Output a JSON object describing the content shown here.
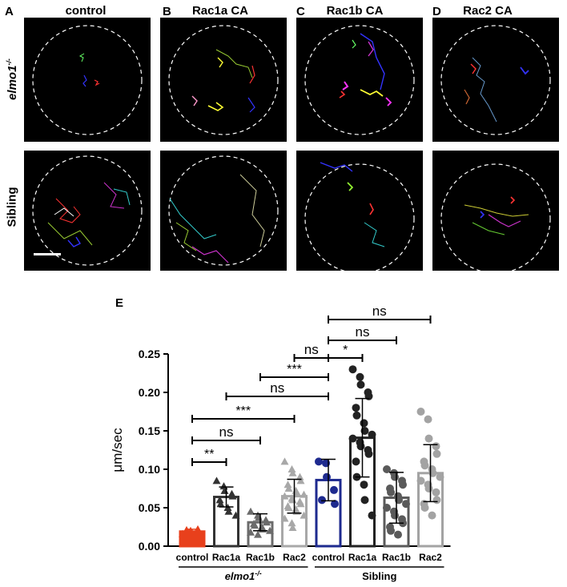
{
  "panels": [
    {
      "letter": "A",
      "title": "control"
    },
    {
      "letter": "B",
      "title": "Rac1a CA"
    },
    {
      "letter": "C",
      "title": "Rac1b CA"
    },
    {
      "letter": "D",
      "title": "Rac2 CA"
    }
  ],
  "rows": {
    "top": "elmo1",
    "top_sup": "-/-",
    "bottom": "Sibling"
  },
  "panel_e_letter": "E",
  "chart_data": {
    "type": "bar",
    "title": "",
    "ylabel": "μm/sec",
    "ylim": [
      0,
      0.25
    ],
    "yticks": [
      "0.00",
      "0.05",
      "0.10",
      "0.15",
      "0.20",
      "0.25"
    ],
    "categories": [
      "control",
      "Rac1a",
      "Rac1b",
      "Rac2",
      "control",
      "Rac1a",
      "Rac1b",
      "Rac2"
    ],
    "groups": [
      {
        "label": "elmo1",
        "sup": "-/-",
        "italic": true
      },
      {
        "label": "Sibling",
        "sup": "",
        "italic": false
      }
    ],
    "values": [
      0.019,
      0.064,
      0.031,
      0.065,
      0.086,
      0.141,
      0.063,
      0.095
    ],
    "sd": [
      0.003,
      0.013,
      0.011,
      0.022,
      0.027,
      0.051,
      0.033,
      0.037
    ],
    "colors": [
      "#e8401c",
      "#333333",
      "#6b6b6b",
      "#a8a8a8",
      "#1e2a8f",
      "#222222",
      "#5a5a5a",
      "#a3a3a3"
    ],
    "markers": [
      "triangle",
      "triangle",
      "triangle",
      "triangle",
      "circle",
      "circle",
      "circle",
      "circle"
    ],
    "points": [
      [
        0.016,
        0.018,
        0.02,
        0.022,
        0.019,
        0.017,
        0.021
      ],
      [
        0.085,
        0.078,
        0.072,
        0.068,
        0.065,
        0.06,
        0.055,
        0.05,
        0.045,
        0.04
      ],
      [
        0.045,
        0.04,
        0.037,
        0.034,
        0.031,
        0.029,
        0.027,
        0.025,
        0.022,
        0.02,
        0.018,
        0.015
      ],
      [
        0.11,
        0.1,
        0.095,
        0.09,
        0.085,
        0.08,
        0.075,
        0.072,
        0.07,
        0.067,
        0.065,
        0.062,
        0.06,
        0.058,
        0.055,
        0.052,
        0.05,
        0.048,
        0.045,
        0.04,
        0.036,
        0.03,
        0.024
      ],
      [
        0.11,
        0.108,
        0.09,
        0.073,
        0.055,
        0.06
      ],
      [
        0.23,
        0.22,
        0.21,
        0.2,
        0.195,
        0.18,
        0.17,
        0.16,
        0.15,
        0.145,
        0.14,
        0.135,
        0.13,
        0.125,
        0.12,
        0.11,
        0.09,
        0.08,
        0.06,
        0.04
      ],
      [
        0.1,
        0.095,
        0.09,
        0.085,
        0.08,
        0.075,
        0.07,
        0.065,
        0.06,
        0.055,
        0.05,
        0.045,
        0.04,
        0.035,
        0.03,
        0.025,
        0.02,
        0.015
      ],
      [
        0.175,
        0.165,
        0.14,
        0.13,
        0.12,
        0.11,
        0.105,
        0.1,
        0.095,
        0.09,
        0.085,
        0.08,
        0.075,
        0.07,
        0.06,
        0.055,
        0.05,
        0.04
      ]
    ],
    "comparisons": [
      {
        "from": 0,
        "to": 1,
        "label": "**"
      },
      {
        "from": 0,
        "to": 2,
        "label": "ns"
      },
      {
        "from": 0,
        "to": 3,
        "label": "***"
      },
      {
        "from": 1,
        "to": 4,
        "label": "ns"
      },
      {
        "from": 2,
        "to": 4,
        "label": "***"
      },
      {
        "from": 3,
        "to": 4,
        "label": "ns"
      },
      {
        "from": 4,
        "to": 5,
        "label": "*"
      },
      {
        "from": 4,
        "to": 6,
        "label": "ns"
      },
      {
        "from": 4,
        "to": 7,
        "label": "ns"
      }
    ]
  }
}
